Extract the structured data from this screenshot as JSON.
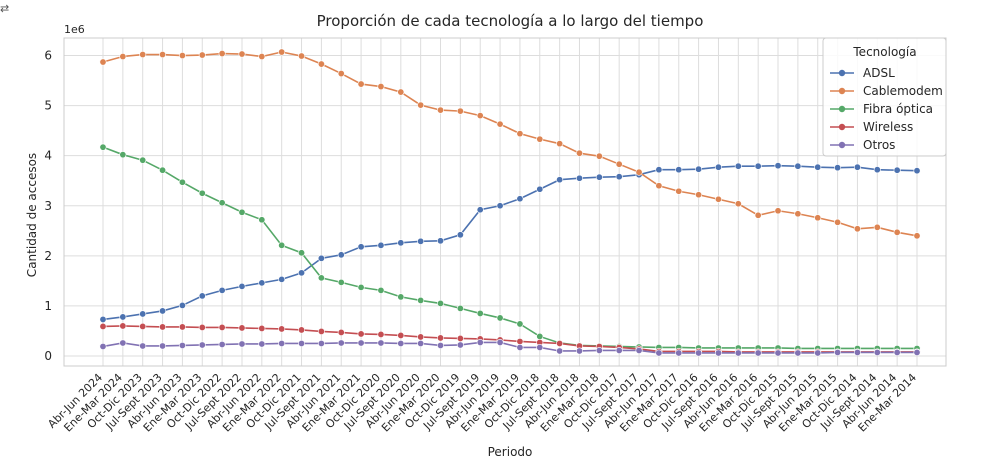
{
  "corner_glyph": "⇄",
  "colors": {
    "adsl": "#4c72b0",
    "cablemodem": "#dd8452",
    "fibra": "#55a868",
    "wireless": "#c44e52",
    "otros": "#8172b3",
    "grid": "#dddddd",
    "background": "#ffffff",
    "text": "#262626"
  },
  "chart_data": {
    "type": "line",
    "title": "Proporción de cada tecnología a lo largo del tiempo",
    "xlabel": "Periodo",
    "ylabel": "Cantidad de accesos",
    "y_offset_label": "1e6",
    "ylim": [
      -0.2,
      6.35
    ],
    "y_ticks": [
      0,
      1,
      2,
      3,
      4,
      5,
      6
    ],
    "y_tick_labels": [
      "0",
      "1",
      "2",
      "3",
      "4",
      "5",
      "6"
    ],
    "grid": true,
    "legend_title": "Tecnología",
    "legend_position": "top-right",
    "x_tick_labels": [
      "Abr-Jun 2024",
      "Ene-Mar 2024",
      "Oct-Dic 2023",
      "Jul-Sept 2023",
      "Abr-Jun 2023",
      "Ene-Mar 2023",
      "Oct-Dic 2022",
      "Jul-Sept 2022",
      "Abr-Jun 2022",
      "Ene-Mar 2022",
      "Oct-Dic 2021",
      "Jul-Sept 2021",
      "Abr-Jun 2021",
      "Ene-Mar 2021",
      "Oct-Dic 2020",
      "Jul-Sept 2020",
      "Abr-Jun 2020",
      "Ene-Mar 2020",
      "Oct-Dic 2019",
      "Jul-Sept 2019",
      "Abr-Jun 2019",
      "Ene-Mar 2019",
      "Oct-Dic 2018",
      "Jul-Sept 2018",
      "Abr-Jun 2018",
      "Ene-Mar 2018",
      "Oct-Dic 2017",
      "Jul-Sept 2017",
      "Abr-Jun 2017",
      "Ene-Mar 2017",
      "Oct-Dic 2016",
      "Jul-Sept 2016",
      "Abr-Jun 2016",
      "Ene-Mar 2016",
      "Oct-Dic 2015",
      "Jul-Sept 2015",
      "Abr-Jun 2015",
      "Ene-Mar 2015",
      "Oct-Dic 2014",
      "Jul-Sept 2014",
      "Abr-Jun 2014",
      "Ene-Mar 2014"
    ],
    "series": [
      {
        "name": "ADSL",
        "color": "#4c72b0",
        "values": [
          0.73,
          0.78,
          0.84,
          0.9,
          1.01,
          1.2,
          1.31,
          1.39,
          1.46,
          1.53,
          1.66,
          1.95,
          2.02,
          2.18,
          2.21,
          2.26,
          2.29,
          2.3,
          2.42,
          2.92,
          3.0,
          3.14,
          3.33,
          3.52,
          3.55,
          3.57,
          3.58,
          3.62,
          3.72,
          3.72,
          3.73,
          3.77,
          3.79,
          3.79,
          3.8,
          3.79,
          3.77,
          3.76,
          3.77,
          3.72,
          3.71,
          3.7
        ]
      },
      {
        "name": "Cablemodem",
        "color": "#dd8452",
        "values": [
          5.87,
          5.98,
          6.02,
          6.02,
          6.0,
          6.01,
          6.04,
          6.03,
          5.98,
          6.07,
          5.99,
          5.83,
          5.64,
          5.43,
          5.38,
          5.27,
          5.01,
          4.91,
          4.89,
          4.8,
          4.63,
          4.44,
          4.33,
          4.24,
          4.05,
          3.99,
          3.83,
          3.67,
          3.4,
          3.29,
          3.22,
          3.13,
          3.04,
          2.81,
          2.9,
          2.84,
          2.76,
          2.67,
          2.54,
          2.57,
          2.47,
          2.4
        ]
      },
      {
        "name": "Fibra óptica",
        "color": "#55a868",
        "values": [
          4.17,
          4.02,
          3.91,
          3.71,
          3.47,
          3.25,
          3.06,
          2.87,
          2.72,
          2.21,
          2.06,
          1.56,
          1.47,
          1.37,
          1.31,
          1.18,
          1.11,
          1.05,
          0.95,
          0.85,
          0.76,
          0.64,
          0.39,
          0.26,
          0.21,
          0.2,
          0.19,
          0.18,
          0.17,
          0.17,
          0.16,
          0.16,
          0.16,
          0.16,
          0.16,
          0.15,
          0.15,
          0.15,
          0.15,
          0.15,
          0.15,
          0.15
        ]
      },
      {
        "name": "Wireless",
        "color": "#c44e52",
        "values": [
          0.59,
          0.6,
          0.59,
          0.58,
          0.58,
          0.57,
          0.57,
          0.56,
          0.55,
          0.54,
          0.52,
          0.49,
          0.47,
          0.44,
          0.43,
          0.41,
          0.38,
          0.36,
          0.35,
          0.34,
          0.32,
          0.29,
          0.27,
          0.25,
          0.2,
          0.19,
          0.17,
          0.14,
          0.09,
          0.09,
          0.09,
          0.09,
          0.08,
          0.08,
          0.08,
          0.08,
          0.08,
          0.08,
          0.08,
          0.08,
          0.08,
          0.08
        ]
      },
      {
        "name": "Otros",
        "color": "#8172b3",
        "values": [
          0.19,
          0.26,
          0.2,
          0.2,
          0.21,
          0.22,
          0.23,
          0.24,
          0.24,
          0.25,
          0.25,
          0.25,
          0.26,
          0.26,
          0.26,
          0.25,
          0.25,
          0.21,
          0.22,
          0.27,
          0.27,
          0.17,
          0.17,
          0.1,
          0.1,
          0.11,
          0.11,
          0.11,
          0.06,
          0.06,
          0.06,
          0.06,
          0.06,
          0.06,
          0.06,
          0.06,
          0.06,
          0.07,
          0.07,
          0.07,
          0.07,
          0.07
        ]
      }
    ]
  }
}
